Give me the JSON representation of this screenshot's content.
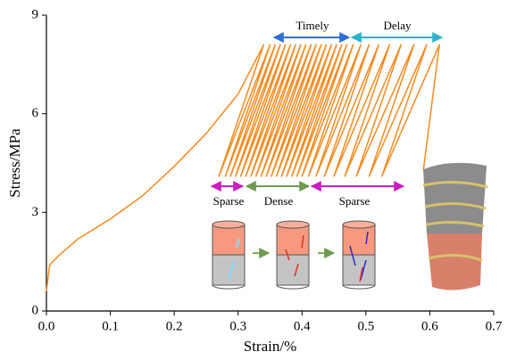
{
  "chart_data": {
    "type": "line",
    "xlabel": "Strain/%",
    "ylabel": "Stress/MPa",
    "xlim": [
      0,
      0.7
    ],
    "ylim": [
      0,
      9
    ],
    "xticks": [
      {
        "value": 0,
        "label": "0.0"
      },
      0.1,
      0.2,
      0.3,
      0.4,
      0.5,
      0.6,
      0.7
    ],
    "yticks": [
      0,
      3,
      6,
      9
    ],
    "series": [
      {
        "color": "#f58a1f",
        "x": [
          0,
          0.005,
          0.02,
          0.05,
          0.1,
          0.15,
          0.2,
          0.25,
          0.3,
          0.34,
          0.27,
          0.35,
          0.28,
          0.358,
          0.288,
          0.366,
          0.296,
          0.374,
          0.304,
          0.382,
          0.312,
          0.39,
          0.32,
          0.398,
          0.328,
          0.406,
          0.336,
          0.414,
          0.344,
          0.422,
          0.352,
          0.43,
          0.36,
          0.438,
          0.368,
          0.446,
          0.376,
          0.454,
          0.384,
          0.462,
          0.392,
          0.47,
          0.4,
          0.48,
          0.41,
          0.492,
          0.422,
          0.505,
          0.435,
          0.52,
          0.45,
          0.537,
          0.467,
          0.555,
          0.485,
          0.575,
          0.505,
          0.595,
          0.525,
          0.615,
          0.59
        ],
        "values": [
          0.6,
          1.4,
          1.7,
          2.2,
          2.8,
          3.5,
          4.4,
          5.4,
          6.6,
          8.1,
          4.1,
          8.1,
          4.1,
          8.1,
          4.1,
          8.1,
          4.1,
          8.1,
          4.1,
          8.1,
          4.1,
          8.1,
          4.1,
          8.1,
          4.1,
          8.1,
          4.1,
          8.1,
          4.1,
          8.1,
          4.1,
          8.1,
          4.1,
          8.1,
          4.1,
          8.1,
          4.1,
          8.1,
          4.1,
          8.1,
          4.1,
          8.1,
          4.1,
          8.1,
          4.1,
          8.1,
          4.1,
          8.1,
          4.1,
          8.1,
          4.1,
          8.1,
          4.1,
          8.1,
          4.1,
          8.1,
          4.1,
          8.1,
          4.1,
          8.1,
          4.3
        ]
      }
    ],
    "annotations": [
      "Timely",
      "Delay",
      "Sparse",
      "Dense",
      "Sparse"
    ]
  }
}
